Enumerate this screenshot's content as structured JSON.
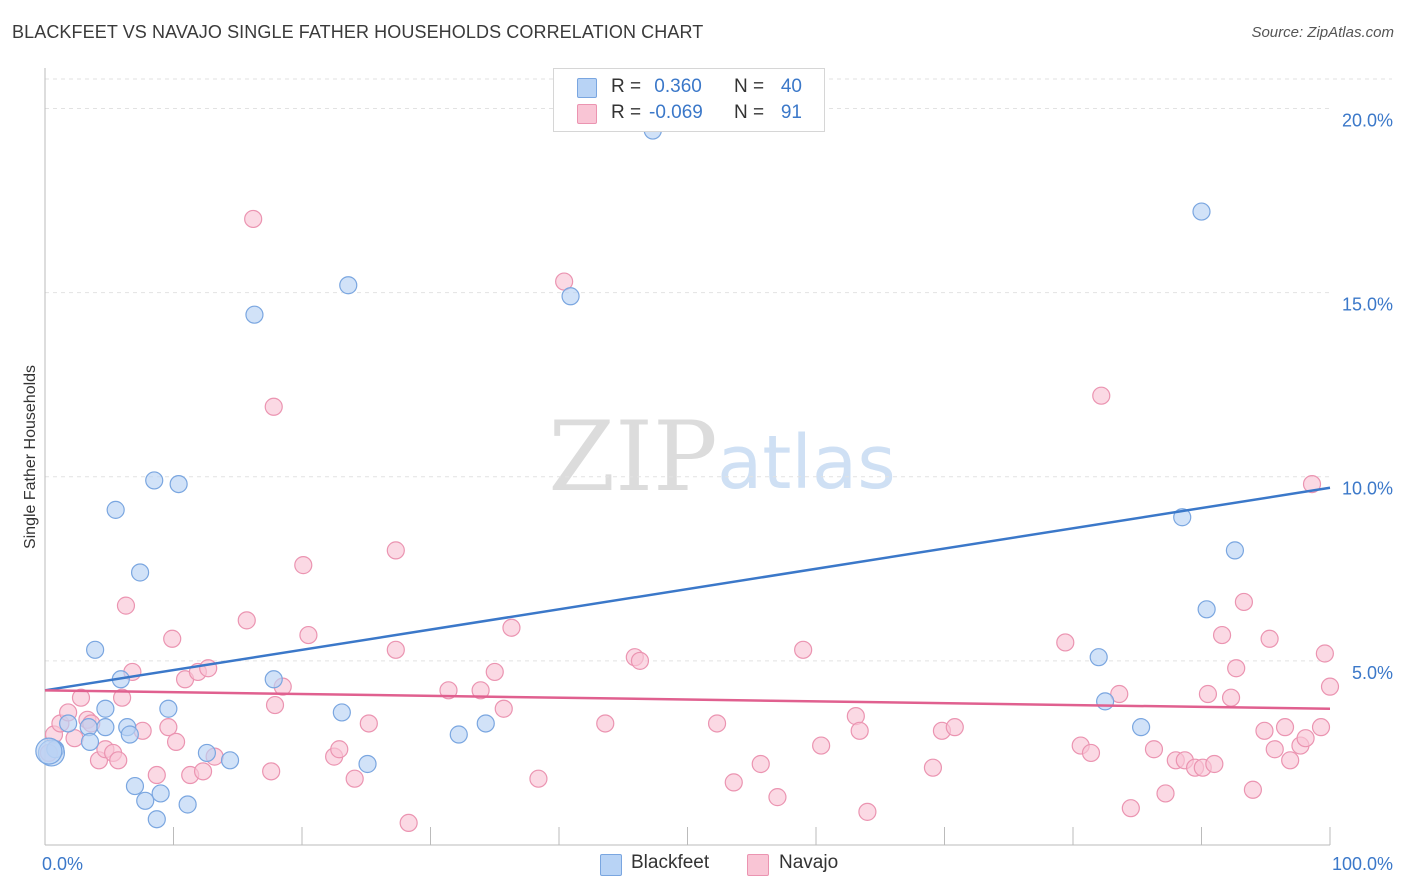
{
  "title": "BLACKFEET VS NAVAJO SINGLE FATHER HOUSEHOLDS CORRELATION CHART",
  "source": "Source: ZipAtlas.com",
  "watermark": {
    "zip": "ZIP",
    "atlas": "atlas"
  },
  "legend_top": [
    {
      "swatch_color": "#b8d3f5",
      "border_color": "#7aa6e0",
      "r_label": "R =",
      "r_value": " 0.360",
      "n_label": "N =",
      "n_value": "40"
    },
    {
      "swatch_color": "#f9c5d5",
      "border_color": "#eb94b1",
      "r_label": "R =",
      "r_value": "-0.069",
      "n_label": "N =",
      "n_value": "91"
    }
  ],
  "legend_bottom": [
    {
      "label": "Blackfeet",
      "swatch_color": "#b8d3f5",
      "border_color": "#7aa6e0"
    },
    {
      "label": "Navajo",
      "swatch_color": "#f9c5d5",
      "border_color": "#eb94b1"
    }
  ],
  "chart_data": {
    "type": "scatter",
    "title": "BLACKFEET VS NAVAJO SINGLE FATHER HOUSEHOLDS CORRELATION CHART",
    "xlabel": "",
    "ylabel": "Single Father Households",
    "xlim": [
      0,
      100
    ],
    "ylim": [
      0,
      20.8
    ],
    "x_tick_labels": [
      {
        "value": 0,
        "label": "0.0%"
      },
      {
        "value": 100,
        "label": "100.0%"
      }
    ],
    "x_minor_ticks": [
      0,
      10,
      20,
      30,
      40,
      50,
      60,
      70,
      80,
      90,
      100
    ],
    "y_ticks": [
      {
        "value": 5,
        "label": "5.0%"
      },
      {
        "value": 10,
        "label": "10.0%"
      },
      {
        "value": 15,
        "label": "15.0%"
      },
      {
        "value": 20,
        "label": "20.0%"
      }
    ],
    "grid": true,
    "series": [
      {
        "name": "Blackfeet",
        "color": "#3b78c9",
        "fill": "#b8d3f5",
        "stroke": "#7aa6e0",
        "r": 0.36,
        "n": 40,
        "trend": {
          "x0": 0,
          "y0": 4.2,
          "x1": 100,
          "y1": 9.7
        },
        "points": [
          [
            0.8,
            2.6
          ],
          [
            1.8,
            3.3
          ],
          [
            3.4,
            3.2
          ],
          [
            3.5,
            2.8
          ],
          [
            4.7,
            3.2
          ],
          [
            3.9,
            5.3
          ],
          [
            4.7,
            3.7
          ],
          [
            5.5,
            9.1
          ],
          [
            5.9,
            4.5
          ],
          [
            6.4,
            3.2
          ],
          [
            6.6,
            3.0
          ],
          [
            7.0,
            1.6
          ],
          [
            7.4,
            7.4
          ],
          [
            7.8,
            1.2
          ],
          [
            8.5,
            9.9
          ],
          [
            8.7,
            0.7
          ],
          [
            9.0,
            1.4
          ],
          [
            9.6,
            3.7
          ],
          [
            10.4,
            9.8
          ],
          [
            11.1,
            1.1
          ],
          [
            12.6,
            2.5
          ],
          [
            14.4,
            2.3
          ],
          [
            16.3,
            14.4
          ],
          [
            17.8,
            4.5
          ],
          [
            23.1,
            3.6
          ],
          [
            23.6,
            15.2
          ],
          [
            25.1,
            2.2
          ],
          [
            32.2,
            3.0
          ],
          [
            34.3,
            3.3
          ],
          [
            40.9,
            14.9
          ],
          [
            47.3,
            19.4
          ],
          [
            82.0,
            5.1
          ],
          [
            82.5,
            3.9
          ],
          [
            85.3,
            3.2
          ],
          [
            88.5,
            8.9
          ],
          [
            90.0,
            17.2
          ],
          [
            90.4,
            6.4
          ],
          [
            92.6,
            8.0
          ],
          [
            0.5,
            2.5
          ],
          [
            0.3,
            2.55
          ]
        ]
      },
      {
        "name": "Navajo",
        "color": "#e0608f",
        "fill": "#f9c5d5",
        "stroke": "#eb94b1",
        "r": -0.069,
        "n": 91,
        "trend": {
          "x0": 0,
          "y0": 4.2,
          "x1": 100,
          "y1": 3.7
        },
        "points": [
          [
            0.3,
            2.5
          ],
          [
            0.7,
            3.0
          ],
          [
            1.2,
            3.3
          ],
          [
            1.8,
            3.6
          ],
          [
            2.3,
            2.9
          ],
          [
            2.8,
            4.0
          ],
          [
            3.3,
            3.4
          ],
          [
            3.6,
            3.3
          ],
          [
            4.2,
            2.3
          ],
          [
            4.7,
            2.6
          ],
          [
            5.3,
            2.5
          ],
          [
            5.7,
            2.3
          ],
          [
            6.0,
            4.0
          ],
          [
            6.3,
            6.5
          ],
          [
            6.8,
            4.7
          ],
          [
            7.6,
            3.1
          ],
          [
            8.7,
            1.9
          ],
          [
            9.6,
            3.2
          ],
          [
            9.9,
            5.6
          ],
          [
            10.2,
            2.8
          ],
          [
            10.9,
            4.5
          ],
          [
            11.3,
            1.9
          ],
          [
            11.9,
            4.7
          ],
          [
            12.3,
            2.0
          ],
          [
            12.7,
            4.8
          ],
          [
            13.2,
            2.4
          ],
          [
            15.7,
            6.1
          ],
          [
            16.2,
            17.0
          ],
          [
            17.6,
            2.0
          ],
          [
            17.9,
            3.8
          ],
          [
            18.5,
            4.3
          ],
          [
            17.8,
            11.9
          ],
          [
            20.1,
            7.6
          ],
          [
            20.5,
            5.7
          ],
          [
            22.5,
            2.4
          ],
          [
            22.9,
            2.6
          ],
          [
            24.1,
            1.8
          ],
          [
            25.2,
            3.3
          ],
          [
            27.3,
            5.3
          ],
          [
            27.3,
            8.0
          ],
          [
            28.3,
            0.6
          ],
          [
            31.4,
            4.2
          ],
          [
            33.9,
            4.2
          ],
          [
            35.0,
            4.7
          ],
          [
            35.7,
            3.7
          ],
          [
            36.3,
            5.9
          ],
          [
            38.4,
            1.8
          ],
          [
            40.4,
            15.3
          ],
          [
            43.6,
            3.3
          ],
          [
            45.9,
            5.1
          ],
          [
            46.3,
            5.0
          ],
          [
            52.3,
            3.3
          ],
          [
            53.6,
            1.7
          ],
          [
            55.7,
            2.2
          ],
          [
            57.0,
            1.3
          ],
          [
            59.0,
            5.3
          ],
          [
            60.4,
            2.7
          ],
          [
            63.1,
            3.5
          ],
          [
            63.4,
            3.1
          ],
          [
            64.0,
            0.9
          ],
          [
            69.1,
            2.1
          ],
          [
            69.8,
            3.1
          ],
          [
            70.8,
            3.2
          ],
          [
            79.4,
            5.5
          ],
          [
            80.6,
            2.7
          ],
          [
            81.4,
            2.5
          ],
          [
            82.2,
            12.2
          ],
          [
            83.6,
            4.1
          ],
          [
            84.5,
            1.0
          ],
          [
            86.3,
            2.6
          ],
          [
            87.2,
            1.4
          ],
          [
            88.0,
            2.3
          ],
          [
            88.7,
            2.3
          ],
          [
            89.5,
            2.1
          ],
          [
            90.1,
            2.1
          ],
          [
            90.5,
            4.1
          ],
          [
            91.0,
            2.2
          ],
          [
            91.6,
            5.7
          ],
          [
            92.3,
            4.0
          ],
          [
            92.7,
            4.8
          ],
          [
            93.3,
            6.6
          ],
          [
            94.0,
            1.5
          ],
          [
            94.9,
            3.1
          ],
          [
            95.3,
            5.6
          ],
          [
            95.7,
            2.6
          ],
          [
            96.5,
            3.2
          ],
          [
            96.9,
            2.3
          ],
          [
            97.7,
            2.7
          ],
          [
            98.1,
            2.9
          ],
          [
            98.6,
            9.8
          ],
          [
            99.3,
            3.2
          ],
          [
            99.6,
            5.2
          ],
          [
            100.0,
            4.3
          ]
        ]
      }
    ]
  }
}
